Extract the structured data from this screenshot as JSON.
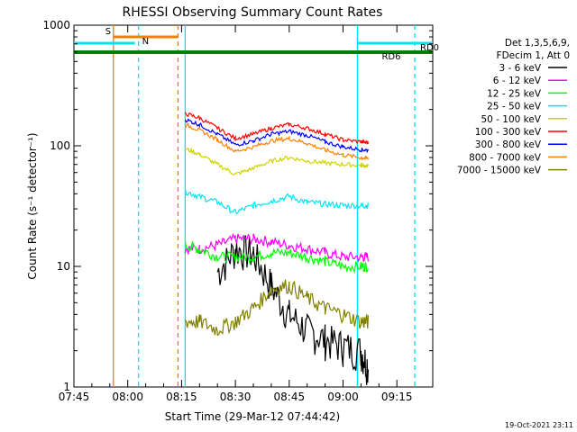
{
  "chart_data": {
    "type": "line",
    "title": "RHESSI Observing Summary Count Rates",
    "xlabel": "Start Time (29-Mar-12 07:44:42)",
    "ylabel": "Count Rate (s⁻¹ detector⁻¹)",
    "y_scale": "log",
    "ylim": [
      1,
      1000
    ],
    "xlim": [
      "07:45",
      "09:25"
    ],
    "x_ticks": [
      "07:45",
      "08:00",
      "08:15",
      "08:30",
      "08:45",
      "09:00",
      "09:15"
    ],
    "y_ticks": [
      "1",
      "10",
      "100",
      "1000"
    ],
    "legend_header": [
      "Det 1,3,5,6,9,",
      "FDecim 1, Att 0"
    ],
    "legend_position": "right",
    "footer_date": "19-Oct-2021 23:11",
    "markers": [
      {
        "label": "S",
        "x_start": "07:56",
        "x_end": "08:14",
        "color": "#f08000"
      },
      {
        "label": "N",
        "x_start": "07:45",
        "x_end": "08:02",
        "color": "#00e5ee"
      },
      {
        "label": "RD0",
        "x_start": "09:04",
        "x_end": "09:25",
        "color": "#00e5ee"
      },
      {
        "label": "RD6",
        "x_start": "07:45",
        "x_end": "09:25",
        "color": "#00800a"
      }
    ],
    "vlines": [
      {
        "x": "07:56",
        "color": "#f08000",
        "style": "solid"
      },
      {
        "x": "08:03",
        "color": "#00e5ee",
        "style": "dashed"
      },
      {
        "x": "08:14",
        "color": "#f08000",
        "style": "dashed"
      },
      {
        "x": "08:16",
        "color": "#00e5ee",
        "style": "solid"
      },
      {
        "x": "09:04",
        "color": "#00e5ee",
        "style": "solid"
      },
      {
        "x": "09:20",
        "color": "#00e5ee",
        "style": "dashed"
      }
    ],
    "x": [
      "08:16",
      "08:20",
      "08:25",
      "08:30",
      "08:35",
      "08:40",
      "08:45",
      "08:50",
      "08:55",
      "09:00",
      "09:05",
      "09:07"
    ],
    "series": [
      {
        "name": "3 - 6 keV",
        "color": "#000000",
        "values": [
          null,
          null,
          9,
          14,
          13,
          7,
          4,
          3,
          2.5,
          2.2,
          2,
          1.5
        ]
      },
      {
        "name": "6 - 12 keV",
        "color": "#ff00ff",
        "values": [
          14,
          14,
          15,
          17,
          17,
          16,
          15,
          14,
          13,
          12,
          12,
          12
        ]
      },
      {
        "name": "12 - 25 keV",
        "color": "#00ff00",
        "values": [
          15,
          14,
          12,
          12,
          12,
          13,
          13,
          12,
          11,
          10,
          10,
          10
        ]
      },
      {
        "name": "25 - 50 keV",
        "color": "#00e5ee",
        "values": [
          42,
          38,
          34,
          28,
          32,
          35,
          38,
          34,
          33,
          32,
          32,
          32
        ]
      },
      {
        "name": "50 - 100 keV",
        "color": "#d2d200",
        "values": [
          95,
          85,
          70,
          58,
          65,
          75,
          80,
          75,
          72,
          70,
          69,
          68
        ]
      },
      {
        "name": "100 - 300 keV",
        "color": "#f000f0",
        "values": [
          185,
          170,
          140,
          115,
          125,
          140,
          150,
          140,
          125,
          112,
          108,
          106
        ]
      },
      {
        "name": "300 - 800 keV",
        "color": "#0000ff",
        "values": [
          165,
          150,
          125,
          102,
          110,
          125,
          132,
          122,
          108,
          98,
          93,
          92
        ]
      },
      {
        "name": "800 - 7000 keV",
        "color": "#ff8000",
        "values": [
          150,
          135,
          112,
          90,
          98,
          110,
          115,
          105,
          92,
          84,
          80,
          78
        ]
      },
      {
        "name": "7000 - 15000 keV",
        "color": "#808000",
        "values": [
          3.5,
          3.5,
          3,
          3.5,
          4.5,
          6.5,
          7,
          5.5,
          4.5,
          4,
          3.5,
          3.5
        ]
      }
    ],
    "series_red": {
      "name": "100 - 300 keV",
      "color": "#ff0000"
    }
  }
}
